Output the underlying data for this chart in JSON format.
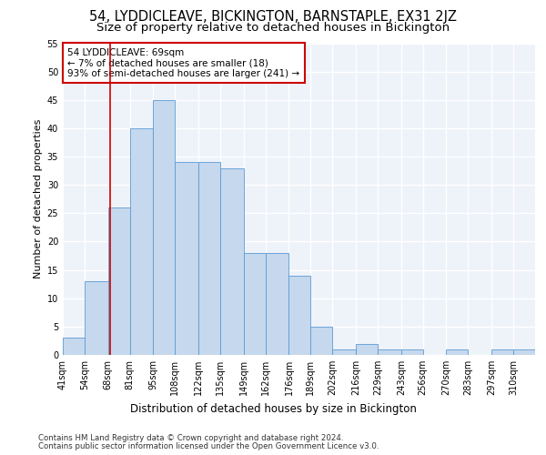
{
  "title1": "54, LYDDICLEAVE, BICKINGTON, BARNSTAPLE, EX31 2JZ",
  "title2": "Size of property relative to detached houses in Bickington",
  "xlabel": "Distribution of detached houses by size in Bickington",
  "ylabel": "Number of detached properties",
  "bins": [
    41,
    54,
    68,
    81,
    95,
    108,
    122,
    135,
    149,
    162,
    176,
    189,
    202,
    216,
    229,
    243,
    256,
    270,
    283,
    297,
    310
  ],
  "values": [
    3,
    13,
    26,
    40,
    45,
    34,
    34,
    33,
    18,
    18,
    14,
    5,
    1,
    2,
    1,
    1,
    0,
    1,
    0,
    1,
    1
  ],
  "bar_color": "#c5d8ed",
  "bar_edge_color": "#5b9bd5",
  "property_size": 69,
  "property_line_color": "#cc0000",
  "annotation_text": "54 LYDDICLEAVE: 69sqm\n← 7% of detached houses are smaller (18)\n93% of semi-detached houses are larger (241) →",
  "annotation_box_color": "#cc0000",
  "ylim": [
    0,
    55
  ],
  "yticks": [
    0,
    5,
    10,
    15,
    20,
    25,
    30,
    35,
    40,
    45,
    50,
    55
  ],
  "background_color": "#eef2f9",
  "grid_color": "#ffffff",
  "footer1": "Contains HM Land Registry data © Crown copyright and database right 2024.",
  "footer2": "Contains public sector information licensed under the Open Government Licence v3.0.",
  "title1_fontsize": 10.5,
  "title2_fontsize": 9.5,
  "xlabel_fontsize": 8.5,
  "ylabel_fontsize": 8,
  "tick_fontsize": 7,
  "annotation_fontsize": 7.5
}
